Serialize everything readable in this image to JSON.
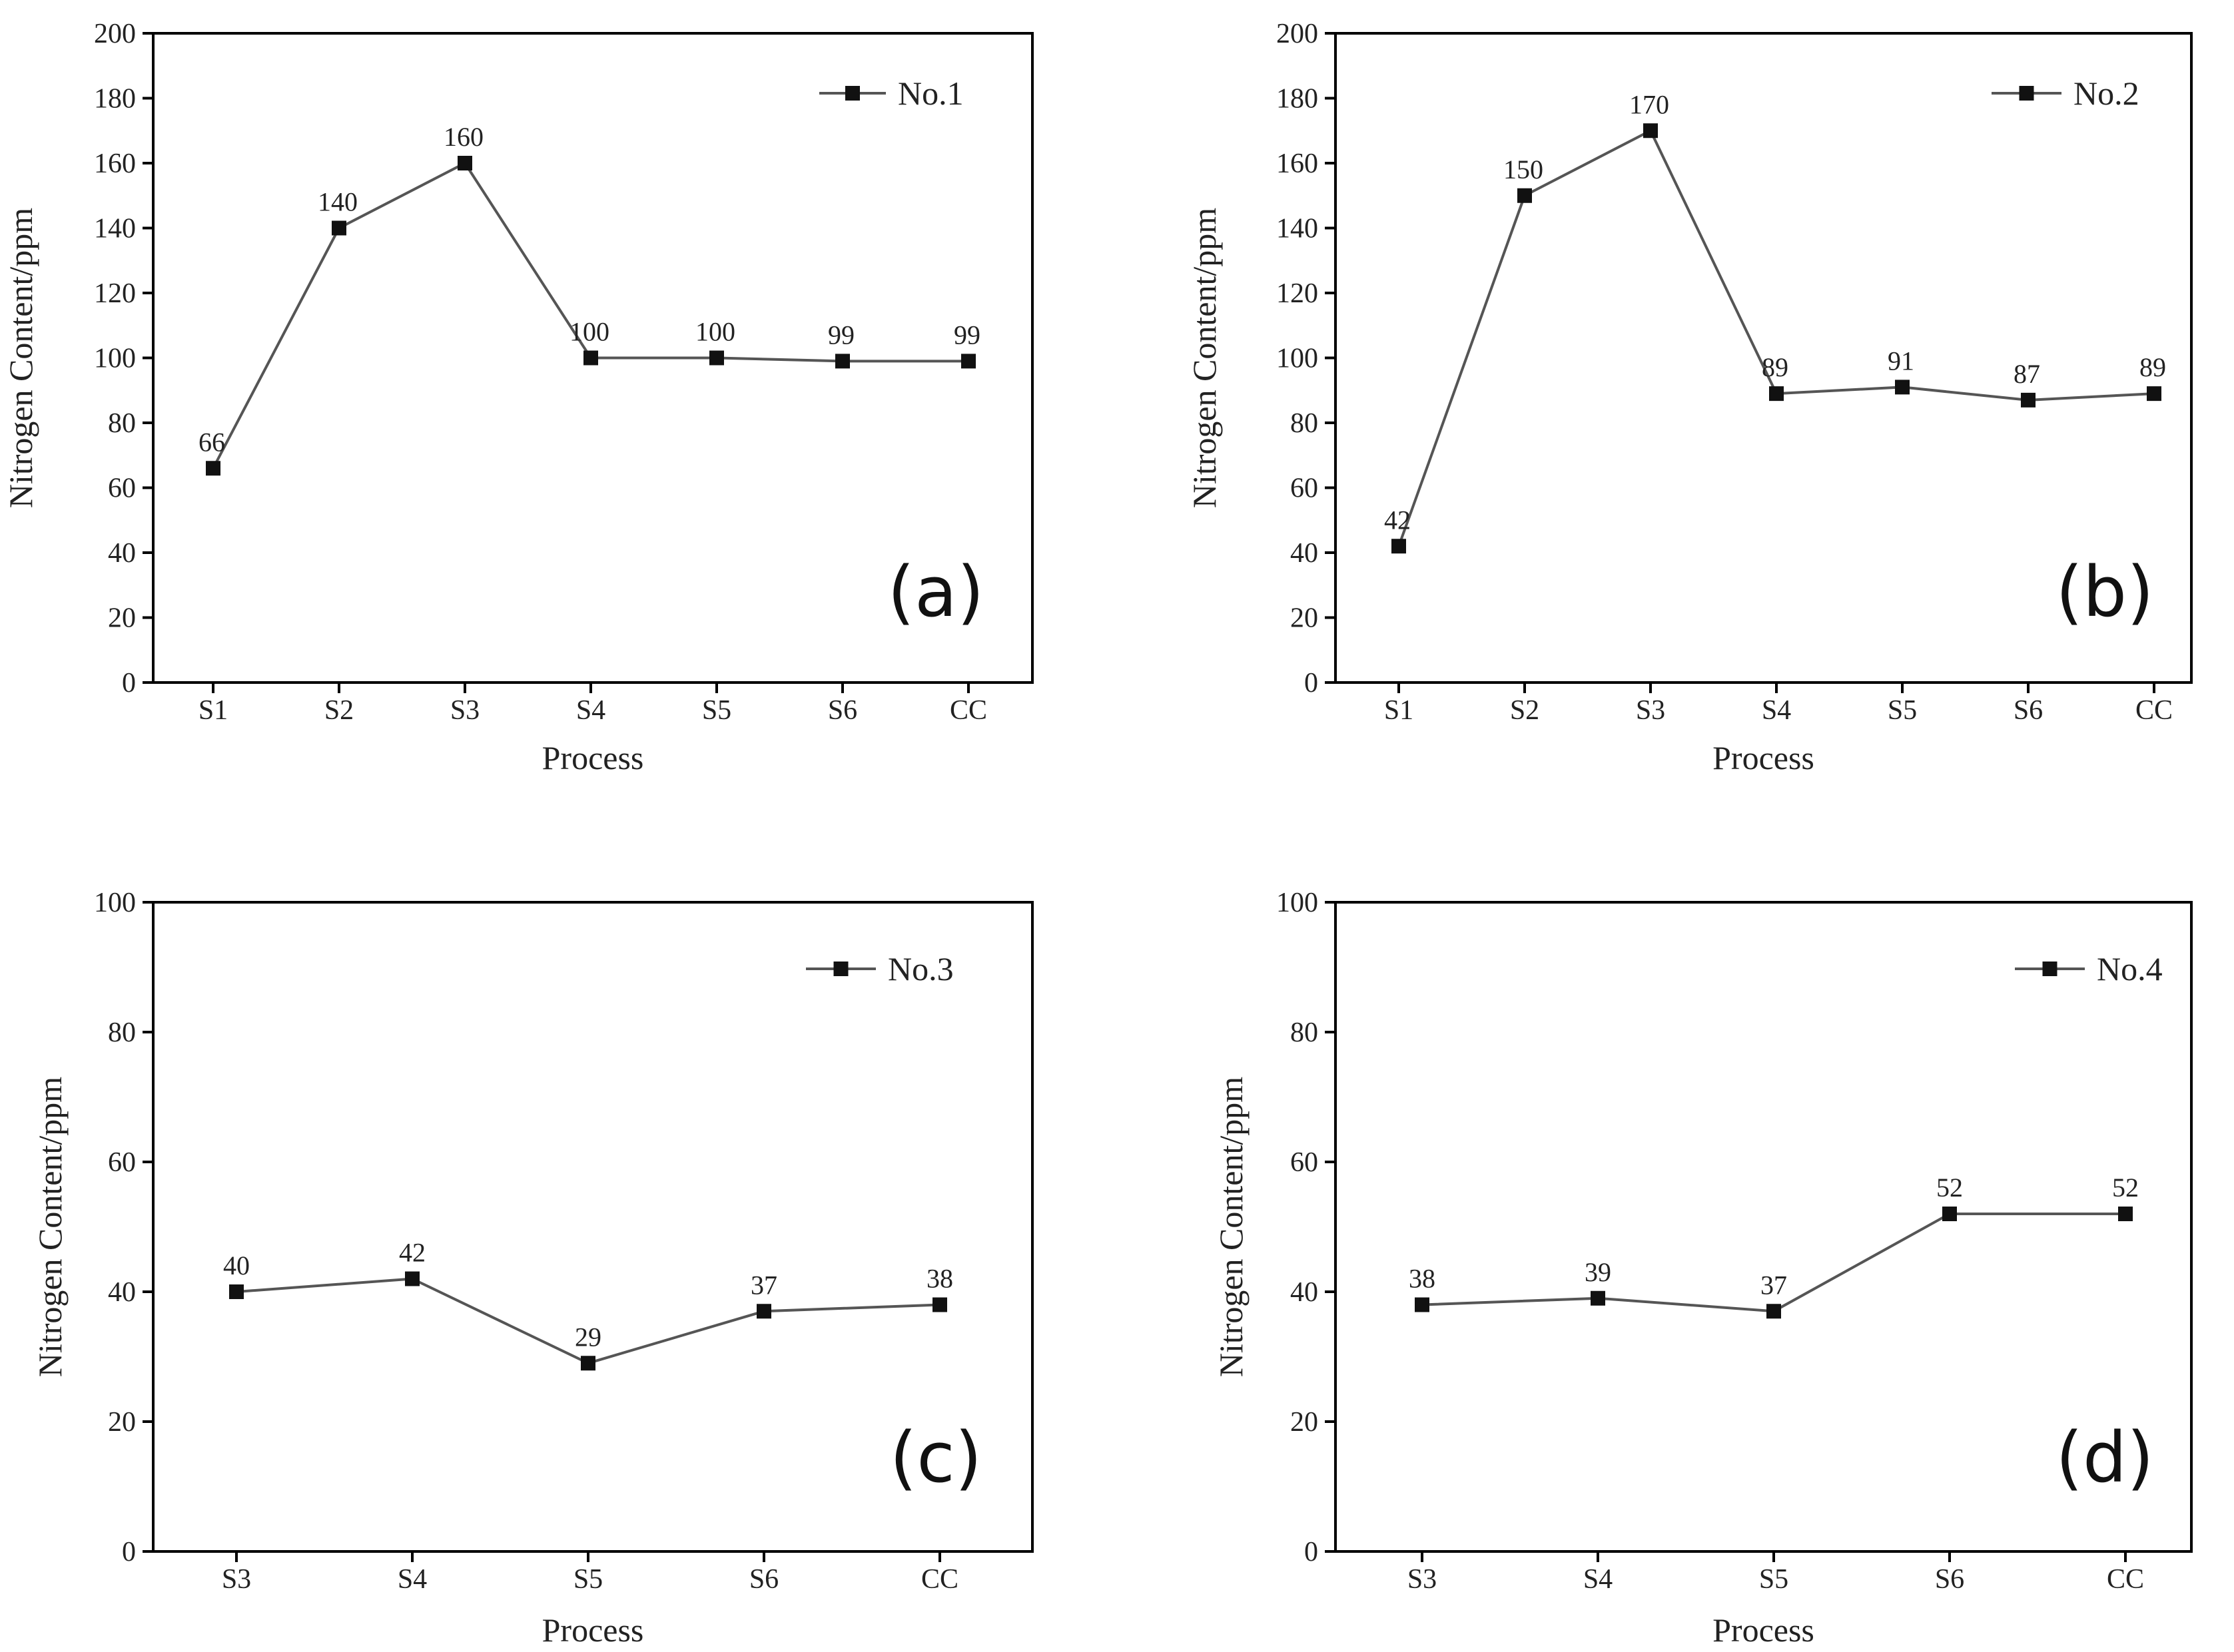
{
  "chart_data": [
    {
      "type": "line",
      "panel_label": "(a)",
      "xlabel": "Process",
      "ylabel": "Nitrogen Content/ppm",
      "categories": [
        "S1",
        "S2",
        "S3",
        "S4",
        "S5",
        "S6",
        "CC"
      ],
      "series": [
        {
          "name": "No.1",
          "values": [
            66,
            140,
            160,
            100,
            100,
            99,
            99
          ]
        }
      ],
      "data_labels": [
        "66",
        "140",
        "160",
        "100",
        "100",
        "99",
        "99"
      ],
      "ylim": [
        0,
        200
      ],
      "yticks": [
        "0",
        "20",
        "40",
        "60",
        "80",
        "100",
        "120",
        "140",
        "160",
        "180",
        "200"
      ],
      "legend_position": "top-right",
      "grid": false
    },
    {
      "type": "line",
      "panel_label": "(b)",
      "xlabel": "Process",
      "ylabel": "Nitrogen Content/ppm",
      "categories": [
        "S1",
        "S2",
        "S3",
        "S4",
        "S5",
        "S6",
        "CC"
      ],
      "series": [
        {
          "name": "No.2",
          "values": [
            42,
            150,
            170,
            89,
            91,
            87,
            89
          ]
        }
      ],
      "data_labels": [
        "42",
        "150",
        "170",
        "89",
        "91",
        "87",
        "89"
      ],
      "ylim": [
        0,
        200
      ],
      "yticks": [
        "0",
        "20",
        "40",
        "60",
        "80",
        "100",
        "120",
        "140",
        "160",
        "180",
        "200"
      ],
      "legend_position": "top-right",
      "grid": false
    },
    {
      "type": "line",
      "panel_label": "(c)",
      "xlabel": "Process",
      "ylabel": "Nitrogen Content/ppm",
      "categories": [
        "S3",
        "S4",
        "S5",
        "S6",
        "CC"
      ],
      "series": [
        {
          "name": "No.3",
          "values": [
            40,
            42,
            29,
            37,
            38
          ]
        }
      ],
      "data_labels": [
        "40",
        "42",
        "29",
        "37",
        "38"
      ],
      "ylim": [
        0,
        100
      ],
      "yticks": [
        "0",
        "20",
        "40",
        "60",
        "80",
        "100"
      ],
      "legend_position": "top-right",
      "grid": false
    },
    {
      "type": "line",
      "panel_label": "(d)",
      "xlabel": "Process",
      "ylabel": "Nitrogen Content/ppm",
      "categories": [
        "S3",
        "S4",
        "S5",
        "S6",
        "CC"
      ],
      "series": [
        {
          "name": "No.4",
          "values": [
            38,
            39,
            37,
            52,
            52
          ]
        }
      ],
      "data_labels": [
        "38",
        "39",
        "37",
        "52",
        "52"
      ],
      "ylim": [
        0,
        100
      ],
      "yticks": [
        "0",
        "20",
        "40",
        "60",
        "80",
        "100"
      ],
      "legend_position": "top-right",
      "grid": false
    }
  ]
}
